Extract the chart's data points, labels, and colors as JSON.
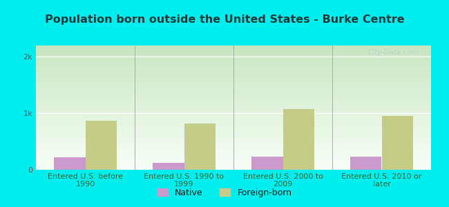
{
  "title": "Population born outside the United States - Burke Centre",
  "categories": [
    "Entered U.S. before\n1990",
    "Entered U.S. 1990 to\n1999",
    "Entered U.S. 2000 to\n2009",
    "Entered U.S. 2010 or\nlater"
  ],
  "native_values": [
    220,
    120,
    230,
    230
  ],
  "foreign_values": [
    870,
    820,
    1080,
    950
  ],
  "native_color": "#cc99cc",
  "foreign_color": "#c5cc88",
  "background_outer": "#00eeee",
  "gradient_top": "#c8e6c0",
  "gradient_bottom": "#f8fff8",
  "ylim": [
    0,
    2200
  ],
  "yticks": [
    0,
    1000,
    2000
  ],
  "ytick_labels": [
    "0",
    "1k",
    "2k"
  ],
  "watermark": "City-Data.com",
  "legend_native": "Native",
  "legend_foreign": "Foreign-born",
  "bar_width": 0.32,
  "title_fontsize": 11.5,
  "tick_fontsize": 8,
  "legend_fontsize": 9,
  "title_color": "#1a3a3a"
}
